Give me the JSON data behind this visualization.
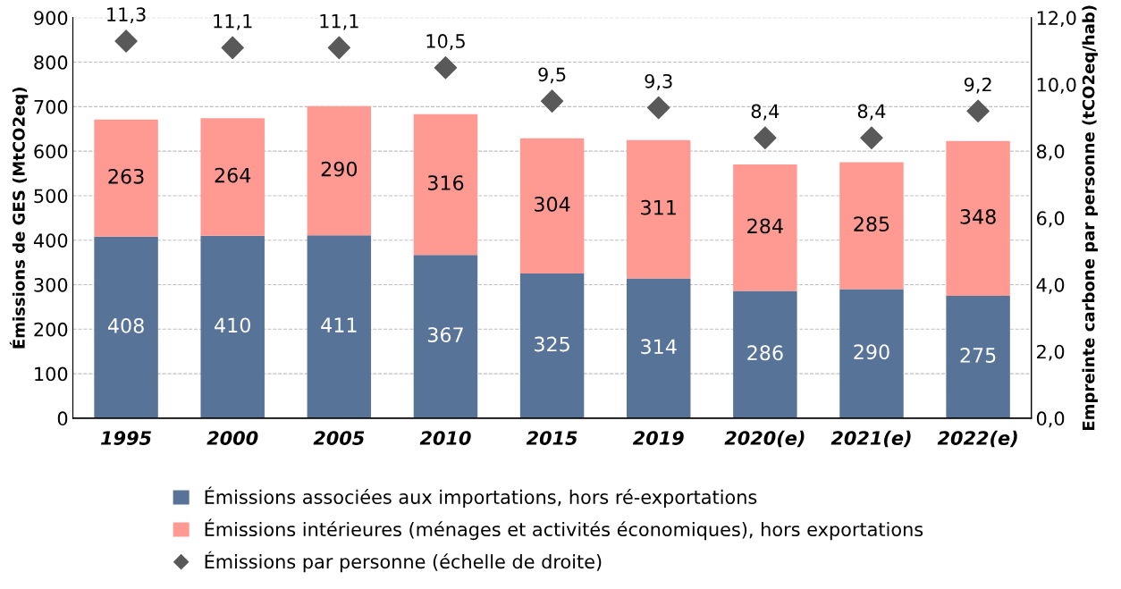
{
  "chart_data": {
    "type": "bar",
    "stacked": true,
    "categories": [
      "1995",
      "2000",
      "2005",
      "2010",
      "2015",
      "2019",
      "2020(e)",
      "2021(e)",
      "2022(e)"
    ],
    "ylabel": "Émissions de GES (MtCO2eq)",
    "y2label": "Empreinte carbone par personne (tCO2eq/hab)",
    "ylim": [
      0,
      900
    ],
    "yticks": [
      0,
      100,
      200,
      300,
      400,
      500,
      600,
      700,
      800,
      900
    ],
    "y2lim": [
      0,
      12
    ],
    "y2ticks": [
      {
        "value": 0,
        "label": "0,0"
      },
      {
        "value": 2,
        "label": "2,0"
      },
      {
        "value": 4,
        "label": "4,0"
      },
      {
        "value": 6,
        "label": "6,0"
      },
      {
        "value": 8,
        "label": "8,0"
      },
      {
        "value": 10,
        "label": "10,0"
      },
      {
        "value": 12,
        "label": "12,0"
      }
    ],
    "grid": "y",
    "legend": "bottom",
    "data_labels": true,
    "series": [
      {
        "name": "Émissions associées aux importations, hors ré-exportations",
        "color": "#587398",
        "values": [
          408,
          410,
          411,
          367,
          325,
          314,
          286,
          290,
          275
        ]
      },
      {
        "name": "Émissions intérieures (ménages et activités économiques), hors exportations",
        "color": "#fe9a92",
        "values": [
          263,
          264,
          290,
          316,
          304,
          311,
          284,
          285,
          348
        ]
      },
      {
        "name": "Émissions par personne (échelle de droite)",
        "type": "scatter",
        "axis": "y2",
        "marker": "diamond",
        "color": "#595959",
        "values": [
          11.3,
          11.1,
          11.1,
          10.5,
          9.5,
          9.3,
          8.4,
          8.4,
          9.2
        ],
        "value_labels": [
          "11,3",
          "11,1",
          "11,1",
          "10,5",
          "9,5",
          "9,3",
          "8,4",
          "8,4",
          "9,2"
        ]
      }
    ]
  }
}
